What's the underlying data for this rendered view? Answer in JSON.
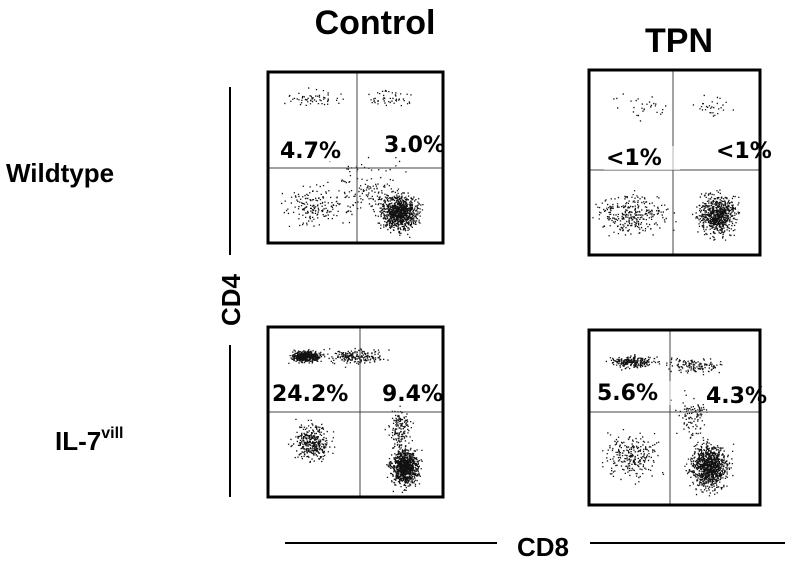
{
  "columns": [
    "Control",
    "TPN"
  ],
  "rows": [
    {
      "label": "Wildtype"
    },
    {
      "label": "IL-7",
      "superscript": "vill"
    }
  ],
  "y_axis_label": "CD4",
  "x_axis_label": "CD8",
  "panels": [
    {
      "upper_left": "4.7%",
      "upper_right": "3.0%"
    },
    {
      "upper_left": "<1%",
      "upper_right": "<1%"
    },
    {
      "upper_left": "24.2%",
      "upper_right": "9.4%"
    },
    {
      "upper_left": "5.6%",
      "upper_right": "4.3%"
    }
  ]
}
